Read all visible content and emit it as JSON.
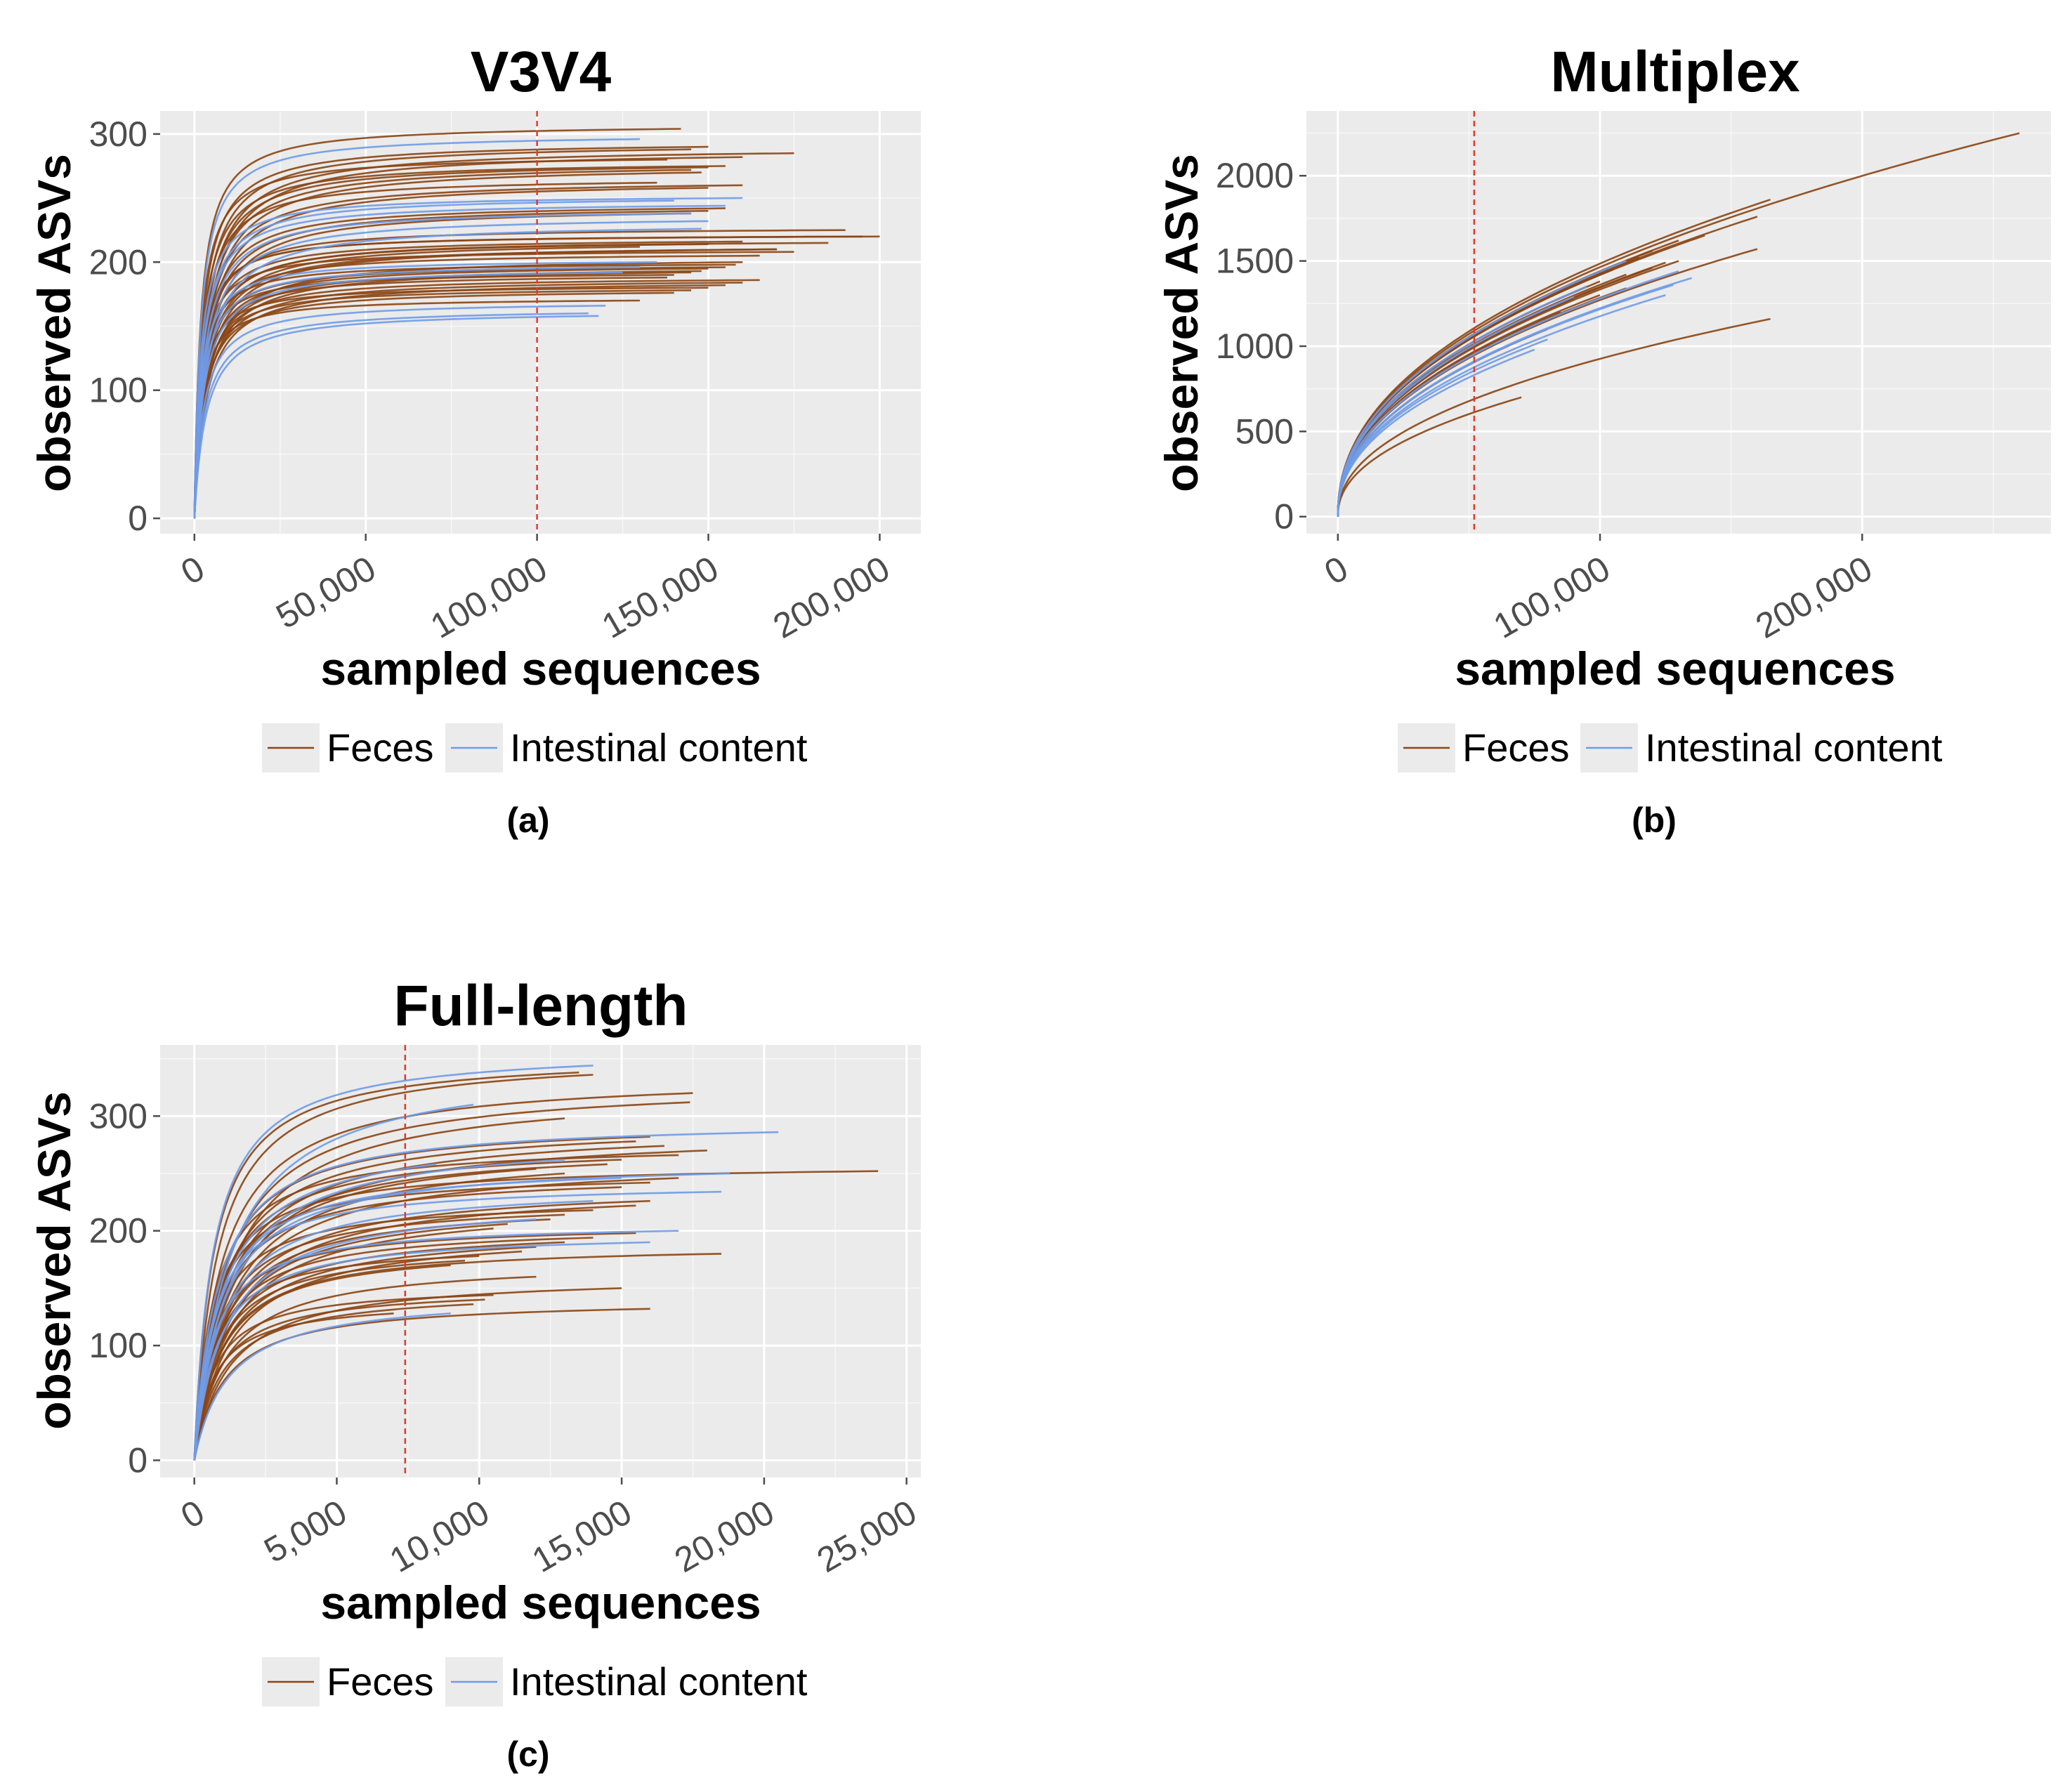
{
  "figure": {
    "captions": [
      "(a)",
      "(b)",
      "(c)"
    ]
  },
  "colors": {
    "feces": "#8B4513",
    "intestinal": "#6F9BE8",
    "panel_bg": "#EBEBEB",
    "grid": "#FFFFFF",
    "threshold": "#E03A2A"
  },
  "chart_data": [
    {
      "type": "line",
      "title": "V3V4",
      "xlabel": "sampled sequences",
      "ylabel": "observed ASVs",
      "xlim": [
        -10000,
        212000
      ],
      "ylim": [
        -12,
        318
      ],
      "xticks": [
        0,
        50000,
        100000,
        150000,
        200000
      ],
      "xtick_labels": [
        "0",
        "50,000",
        "100,000",
        "150,000",
        "200,000"
      ],
      "yticks": [
        0,
        100,
        200,
        300
      ],
      "ytick_labels": [
        "0",
        "100",
        "200",
        "300"
      ],
      "threshold_x": 100000,
      "legend": [
        "Feces",
        "Intestinal content"
      ],
      "legend_position": "bottom",
      "grid": true,
      "series": [
        {
          "name": "Feces",
          "max_x": [
            142000,
            150000,
            145000,
            175000,
            160000,
            138000,
            155000,
            150000,
            145000,
            148000,
            200000,
            160000,
            150000,
            130000,
            170000,
            175000,
            165000,
            155000,
            150000,
            145000,
            195000,
            190000,
            185000,
            170000,
            160000,
            158000,
            155000,
            150000,
            148000,
            145000,
            140000,
            138000,
            165000,
            160000,
            155000,
            150000,
            145000,
            140000,
            160000,
            150000,
            130000,
            135000
          ],
          "asymptote": [
            304,
            290,
            288,
            285,
            282,
            280,
            275,
            274,
            272,
            270,
            220,
            216,
            214,
            212,
            210,
            208,
            205,
            242,
            240,
            238,
            220,
            225,
            215,
            210,
            200,
            198,
            196,
            195,
            193,
            192,
            190,
            188,
            186,
            184,
            182,
            180,
            178,
            176,
            260,
            258,
            170,
            262
          ]
        },
        {
          "name": "Intestinal content",
          "max_x": [
            130000,
            140000,
            120000,
            115000,
            118000,
            160000,
            155000,
            145000,
            150000,
            148000,
            135000,
            130000,
            125000
          ],
          "asymptote": [
            296,
            248,
            166,
            160,
            158,
            250,
            244,
            238,
            232,
            226,
            200,
            196,
            192
          ]
        }
      ]
    },
    {
      "type": "line",
      "title": "Multiplex",
      "xlabel": "sampled sequences",
      "ylabel": "observed ASVs",
      "xlim": [
        -12000,
        272000
      ],
      "ylim": [
        -100,
        2380
      ],
      "xticks": [
        0,
        100000,
        200000
      ],
      "xtick_labels": [
        "0",
        "100,000",
        "200,000"
      ],
      "yticks": [
        0,
        500,
        1000,
        1500,
        2000
      ],
      "ytick_labels": [
        "0",
        "500",
        "1000",
        "1500",
        "2000"
      ],
      "threshold_x": 52000,
      "legend": [
        "Feces",
        "Intestinal content"
      ],
      "legend_position": "bottom",
      "grid": true,
      "series": [
        {
          "name": "Feces",
          "endpoints": [
            [
              260000,
              2250
            ],
            [
              165000,
              1860
            ],
            [
              160000,
              1760
            ],
            [
              160000,
              1570
            ],
            [
              165000,
              1160
            ],
            [
              70000,
              700
            ],
            [
              140000,
              1650
            ],
            [
              130000,
              1500
            ],
            [
              120000,
              1460
            ],
            [
              110000,
              1420
            ],
            [
              100000,
              1380
            ],
            [
              95000,
              1350
            ],
            [
              90000,
              1280
            ],
            [
              120000,
              1560
            ],
            [
              115000,
              1520
            ],
            [
              105000,
              1450
            ],
            [
              100000,
              1300
            ],
            [
              85000,
              1200
            ],
            [
              80000,
              1100
            ],
            [
              130000,
              1620
            ],
            [
              125000,
              1490
            ],
            [
              110000,
              1340
            ]
          ]
        },
        {
          "name": "Intestinal content",
          "endpoints": [
            [
              135000,
              1400
            ],
            [
              130000,
              1440
            ],
            [
              128000,
              1360
            ],
            [
              125000,
              1300
            ],
            [
              95000,
              1350
            ],
            [
              90000,
              1290
            ],
            [
              80000,
              1040
            ],
            [
              75000,
              980
            ],
            [
              110000,
              1500
            ]
          ]
        }
      ]
    },
    {
      "type": "line",
      "title": "Full-length",
      "xlabel": "sampled sequences",
      "ylabel": "observed ASVs",
      "xlim": [
        -1200,
        25500
      ],
      "ylim": [
        -15,
        362
      ],
      "xticks": [
        0,
        5000,
        10000,
        15000,
        20000,
        25000
      ],
      "xtick_labels": [
        "0",
        "5,000",
        "10,000",
        "15,000",
        "20,000",
        "25,000"
      ],
      "yticks": [
        0,
        100,
        200,
        300
      ],
      "ytick_labels": [
        "0",
        "100",
        "200",
        "300"
      ],
      "threshold_x": 7400,
      "legend": [
        "Feces",
        "Intestinal content"
      ],
      "legend_position": "bottom",
      "grid": true,
      "series": [
        {
          "name": "Feces",
          "max_x": [
            13500,
            14000,
            17500,
            17400,
            13000,
            24000,
            16000,
            15500,
            16500,
            18000,
            17000,
            15000,
            14500,
            12000,
            17000,
            16000,
            15000,
            18500,
            16000,
            15500,
            14000,
            13000,
            12500,
            11000,
            10500,
            15500,
            14000,
            13000,
            12000,
            11500,
            10000,
            9500,
            9000,
            16000,
            15000,
            10500,
            10200,
            9800,
            12000,
            13000,
            7000
          ],
          "asymptote": [
            338,
            336,
            320,
            312,
            298,
            252,
            282,
            278,
            274,
            270,
            266,
            262,
            258,
            254,
            246,
            242,
            238,
            180,
            226,
            222,
            218,
            214,
            210,
            206,
            202,
            198,
            194,
            190,
            186,
            182,
            178,
            174,
            170,
            132,
            150,
            144,
            140,
            136,
            160,
            250,
            128
          ]
        },
        {
          "name": "Intestinal content",
          "max_x": [
            14000,
            20500,
            18800,
            13000,
            9800,
            18500,
            15000,
            14000,
            12000,
            9000,
            17000,
            16000,
            8500
          ],
          "asymptote": [
            344,
            286,
            250,
            262,
            310,
            234,
            246,
            226,
            210,
            128,
            200,
            190,
            258
          ]
        }
      ]
    }
  ]
}
